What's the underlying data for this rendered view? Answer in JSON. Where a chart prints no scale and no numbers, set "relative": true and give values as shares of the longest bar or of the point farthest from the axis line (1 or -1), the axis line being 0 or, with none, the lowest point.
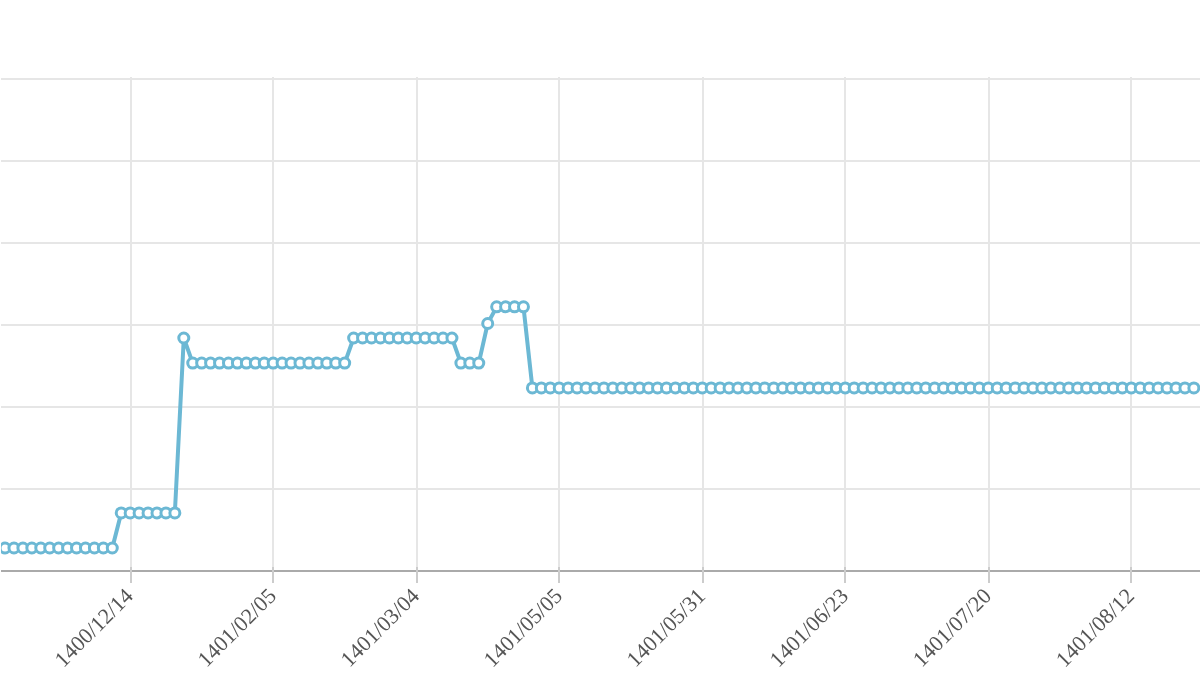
{
  "chart_data": {
    "type": "line",
    "relative": true,
    "grid": true,
    "marker": "circle",
    "line_style": "solid",
    "categories": [
      null,
      null,
      null,
      null,
      null,
      null,
      null,
      null,
      null,
      null,
      null,
      null,
      null,
      null,
      "1400/12/14",
      null,
      null,
      null,
      null,
      null,
      null,
      null,
      null,
      null,
      null,
      null,
      null,
      null,
      null,
      null,
      "1401/02/05",
      null,
      null,
      null,
      null,
      null,
      null,
      null,
      null,
      null,
      null,
      null,
      null,
      null,
      null,
      null,
      "1401/03/04",
      null,
      null,
      null,
      null,
      null,
      null,
      null,
      null,
      null,
      null,
      null,
      null,
      null,
      null,
      null,
      "1401/05/05",
      null,
      null,
      null,
      null,
      null,
      null,
      null,
      null,
      null,
      null,
      null,
      null,
      null,
      null,
      null,
      "1401/05/31",
      null,
      null,
      null,
      null,
      null,
      null,
      null,
      null,
      null,
      null,
      null,
      null,
      null,
      null,
      null,
      "1401/06/23",
      null,
      null,
      null,
      null,
      null,
      null,
      null,
      null,
      null,
      null,
      null,
      null,
      null,
      null,
      null,
      "1401/07/20",
      null,
      null,
      null,
      null,
      null,
      null,
      null,
      null,
      null,
      null,
      null,
      null,
      null,
      null,
      null,
      "1401/08/12",
      null,
      null,
      null,
      null,
      null,
      null,
      null
    ],
    "series": [
      {
        "color": "#6cb8d4",
        "values": [
          0.087,
          0.087,
          0.087,
          0.087,
          0.087,
          0.087,
          0.087,
          0.087,
          0.087,
          0.087,
          0.087,
          0.087,
          0.087,
          0.22,
          0.22,
          0.22,
          0.22,
          0.22,
          0.22,
          0.22,
          0.882,
          0.787,
          0.787,
          0.787,
          0.787,
          0.787,
          0.787,
          0.787,
          0.787,
          0.787,
          0.787,
          0.787,
          0.787,
          0.787,
          0.787,
          0.787,
          0.787,
          0.787,
          0.787,
          0.882,
          0.882,
          0.882,
          0.882,
          0.882,
          0.882,
          0.882,
          0.882,
          0.882,
          0.882,
          0.882,
          0.882,
          0.787,
          0.787,
          0.787,
          0.937,
          1,
          1,
          1,
          1,
          0.693,
          0.693,
          0.693,
          0.693,
          0.693,
          0.693,
          0.693,
          0.693,
          0.693,
          0.693,
          0.693,
          0.693,
          0.693,
          0.693,
          0.693,
          0.693,
          0.693,
          0.693,
          0.693,
          0.693,
          0.693,
          0.693,
          0.693,
          0.693,
          0.693,
          0.693,
          0.693,
          0.693,
          0.693,
          0.693,
          0.693,
          0.693,
          0.693,
          0.693,
          0.693,
          0.693,
          0.693,
          0.693,
          0.693,
          0.693,
          0.693,
          0.693,
          0.693,
          0.693,
          0.693,
          0.693,
          0.693,
          0.693,
          0.693,
          0.693,
          0.693,
          0.693,
          0.693,
          0.693,
          0.693,
          0.693,
          0.693,
          0.693,
          0.693,
          0.693,
          0.693,
          0.693,
          0.693,
          0.693,
          0.693,
          0.693,
          0.693,
          0.693,
          0.693,
          0.693,
          0.693,
          0.693,
          0.693,
          0.693,
          0.693
        ]
      }
    ]
  }
}
